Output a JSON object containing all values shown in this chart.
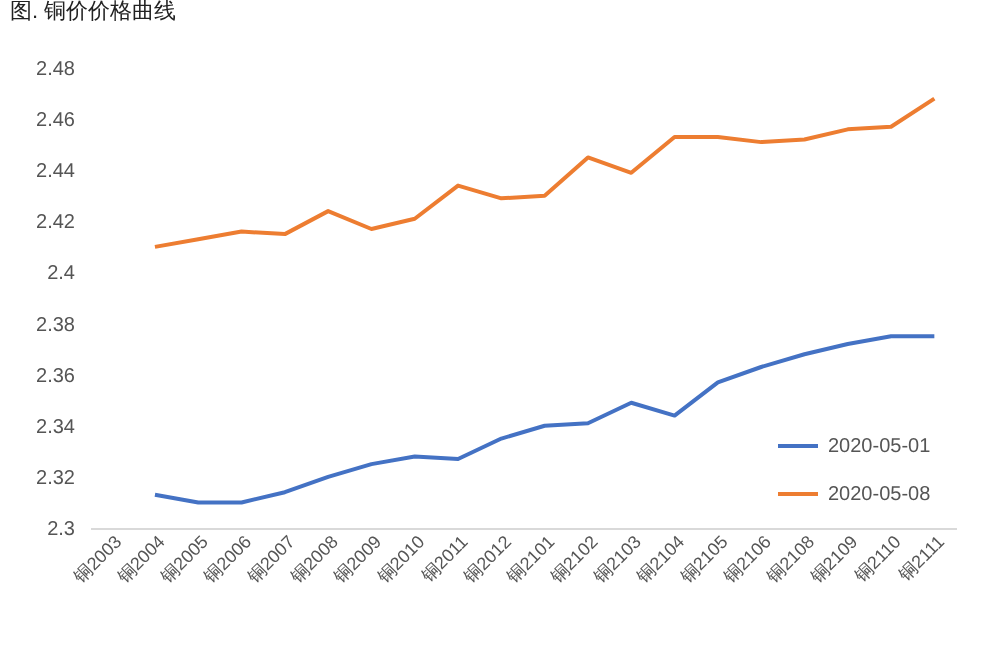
{
  "chart_data": {
    "type": "line",
    "title": "图. 铜价价格曲线",
    "categories": [
      "铜2003",
      "铜2004",
      "铜2005",
      "铜2006",
      "铜2007",
      "铜2008",
      "铜2009",
      "铜2010",
      "铜2011",
      "铜2012",
      "铜2101",
      "铜2102",
      "铜2103",
      "铜2104",
      "铜2105",
      "铜2106",
      "铜2108",
      "铜2109",
      "铜2110",
      "铜2111"
    ],
    "series": [
      {
        "name": "2020-05-01",
        "color": "#4472c4",
        "values": [
          null,
          2.313,
          2.31,
          2.31,
          2.314,
          2.32,
          2.325,
          2.328,
          2.327,
          2.335,
          2.34,
          2.341,
          2.349,
          2.344,
          2.357,
          2.363,
          2.368,
          2.372,
          2.375,
          2.375
        ]
      },
      {
        "name": "2020-05-08",
        "color": "#ed7d31",
        "values": [
          null,
          2.41,
          2.413,
          2.416,
          2.415,
          2.424,
          2.417,
          2.421,
          2.434,
          2.429,
          2.43,
          2.445,
          2.439,
          2.453,
          2.453,
          2.451,
          2.452,
          2.456,
          2.457,
          2.468
        ]
      }
    ],
    "ylim": [
      2.3,
      2.48
    ],
    "yticks": [
      2.3,
      2.32,
      2.34,
      2.36,
      2.38,
      2.4,
      2.42,
      2.44,
      2.46,
      2.48
    ],
    "legend": "bottom right",
    "grid": false
  }
}
